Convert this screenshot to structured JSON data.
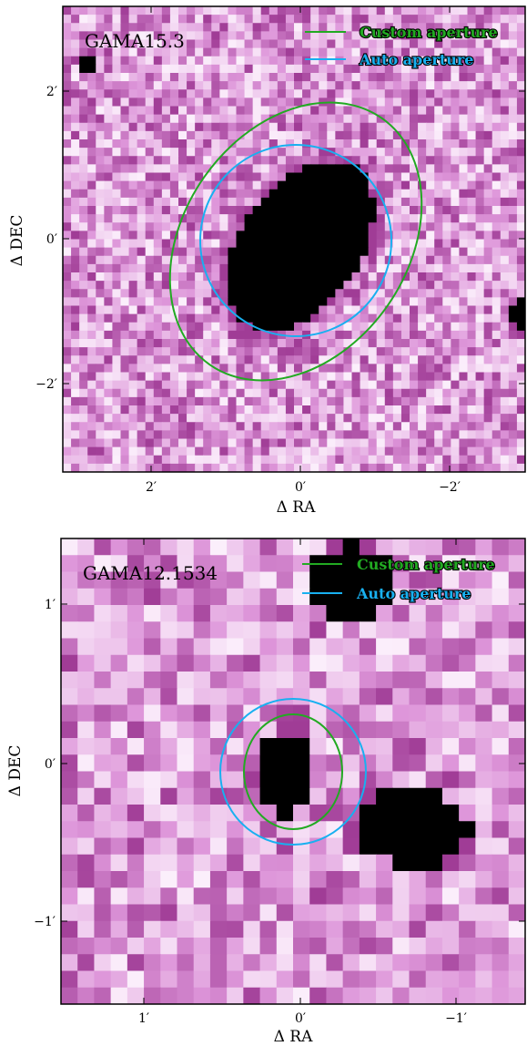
{
  "panels": [
    {
      "object_name": "GAMA15.3",
      "xlabel": "Δ RA",
      "ylabel": "Δ DEC",
      "x_ticks": [
        "2′",
        "0′",
        "−2′"
      ],
      "y_ticks": [
        "2′",
        "0′",
        "−2′"
      ],
      "legend": [
        {
          "label": "Custom aperture",
          "color": "#22aa22"
        },
        {
          "label": "Auto aperture",
          "color": "#18b0f0"
        }
      ]
    },
    {
      "object_name": "GAMA12.1534",
      "xlabel": "Δ RA",
      "ylabel": "Δ DEC",
      "x_ticks": [
        "1′",
        "0′",
        "−1′"
      ],
      "y_ticks": [
        "1′",
        "0′",
        "−1′"
      ],
      "legend": [
        {
          "label": "Custom aperture",
          "color": "#22aa22"
        },
        {
          "label": "Auto aperture",
          "color": "#18b0f0"
        }
      ]
    }
  ],
  "colormap": {
    "light": "#fbeefb",
    "mid": "#d98fd5",
    "dark": "#a13d97",
    "saturated": "#000000"
  }
}
